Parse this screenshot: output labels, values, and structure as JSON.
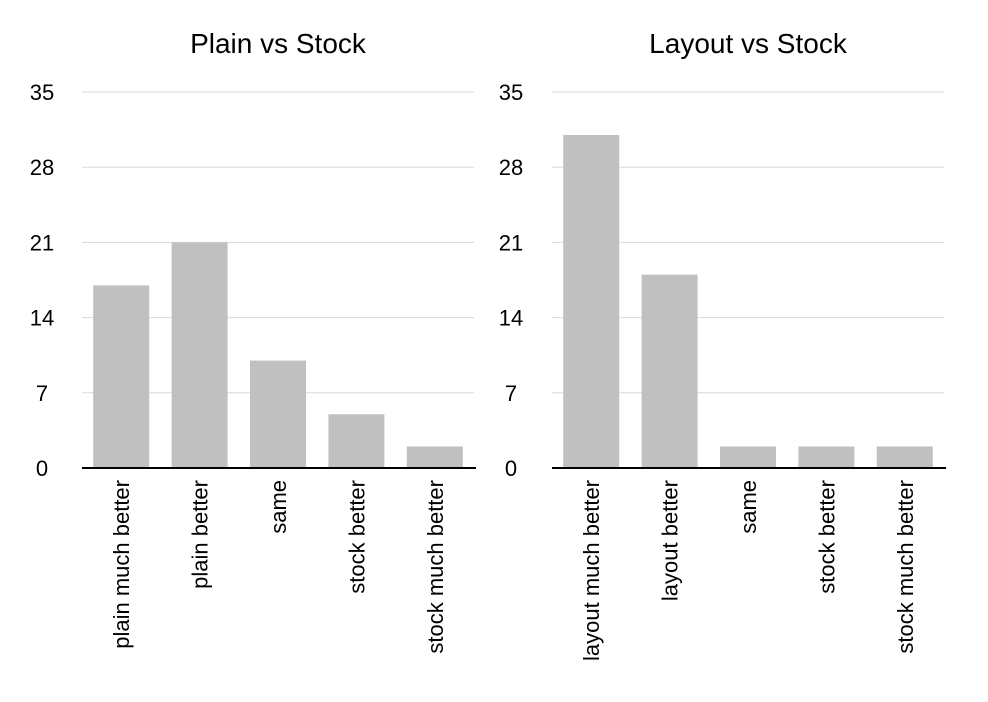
{
  "chart_data": [
    {
      "type": "bar",
      "title": "Plain vs Stock",
      "categories": [
        "plain much better",
        "plain better",
        "same",
        "stock better",
        "stock much better"
      ],
      "values": [
        17,
        21,
        10,
        5,
        2
      ],
      "xlabel": "",
      "ylabel": "",
      "ylim": [
        0,
        35
      ],
      "yticks": [
        "0",
        "7",
        "14",
        "21",
        "28",
        "35"
      ],
      "grid": true,
      "bar_color": "#c0c0c0",
      "grid_color": "#d9d9d9",
      "axis_color": "#000000"
    },
    {
      "type": "bar",
      "title": "Layout vs Stock",
      "categories": [
        "layout much better",
        "layout better",
        "same",
        "stock better",
        "stock much better"
      ],
      "values": [
        31,
        18,
        2,
        2,
        2
      ],
      "xlabel": "",
      "ylabel": "",
      "ylim": [
        0,
        35
      ],
      "yticks": [
        "0",
        "7",
        "14",
        "21",
        "28",
        "35"
      ],
      "grid": true,
      "bar_color": "#c0c0c0",
      "grid_color": "#d9d9d9",
      "axis_color": "#000000"
    }
  ]
}
